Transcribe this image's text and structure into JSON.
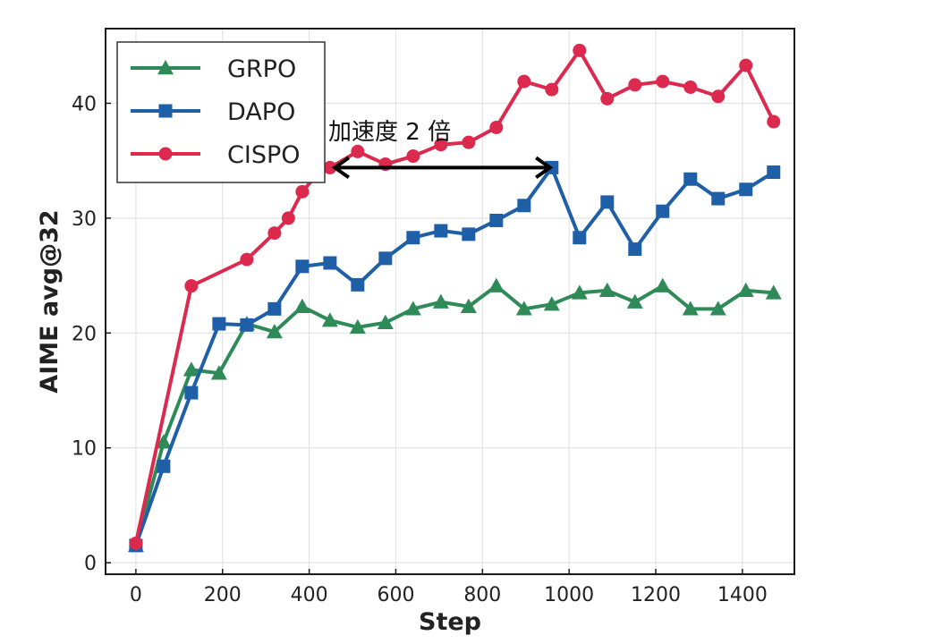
{
  "chart_data": {
    "type": "line",
    "xlabel": "Step",
    "ylabel": "AIME avg@32",
    "xlim": [
      -70,
      1520
    ],
    "ylim": [
      -1,
      46.5
    ],
    "xticks": [
      0,
      200,
      400,
      600,
      800,
      1000,
      1200,
      1400
    ],
    "yticks": [
      0,
      10,
      20,
      30,
      40
    ],
    "grid": true,
    "legend_position": "top-left",
    "series": [
      {
        "name": "GRPO",
        "color": "#2e8b57",
        "marker": "triangle",
        "x": [
          0,
          64,
          128,
          192,
          256,
          320,
          384,
          448,
          512,
          576,
          640,
          704,
          768,
          832,
          896,
          960,
          1024,
          1088,
          1152,
          1216,
          1280,
          1344,
          1408,
          1472
        ],
        "y": [
          1.5,
          10.5,
          16.8,
          16.5,
          20.8,
          20.1,
          22.3,
          21.1,
          20.5,
          20.9,
          22.1,
          22.7,
          22.3,
          24.1,
          22.1,
          22.5,
          23.5,
          23.7,
          22.7,
          24.1,
          22.1,
          22.1,
          23.7,
          23.5
        ]
      },
      {
        "name": "DAPO",
        "color": "#1f5fa8",
        "marker": "square",
        "x": [
          0,
          64,
          128,
          192,
          256,
          320,
          384,
          448,
          512,
          576,
          640,
          704,
          768,
          832,
          896,
          960,
          1024,
          1088,
          1152,
          1216,
          1280,
          1344,
          1408,
          1472
        ],
        "y": [
          1.5,
          8.4,
          14.8,
          20.8,
          20.7,
          22.1,
          25.8,
          26.1,
          24.2,
          26.5,
          28.3,
          28.9,
          28.6,
          29.8,
          31.1,
          34.4,
          28.3,
          31.4,
          27.3,
          30.6,
          33.4,
          31.7,
          32.5,
          34.0
        ]
      },
      {
        "name": "CISPO",
        "color": "#dc2a4f",
        "marker": "circle",
        "x": [
          0,
          128,
          256,
          320,
          352,
          384,
          416,
          448,
          512,
          576,
          640,
          704,
          768,
          832,
          896,
          960,
          1024,
          1088,
          1152,
          1216,
          1280,
          1344,
          1408,
          1472
        ],
        "y": [
          1.7,
          24.1,
          26.4,
          28.7,
          30.0,
          32.3,
          33.7,
          34.4,
          35.8,
          34.7,
          35.4,
          36.4,
          36.6,
          37.9,
          41.9,
          41.2,
          44.6,
          40.4,
          41.6,
          41.9,
          41.4,
          40.6,
          43.3,
          38.4
        ]
      }
    ],
    "annotations": [
      {
        "text": "加速度 2 倍",
        "type": "double-arrow",
        "x_start": 455,
        "x_end": 960,
        "y": 34.4
      }
    ]
  }
}
